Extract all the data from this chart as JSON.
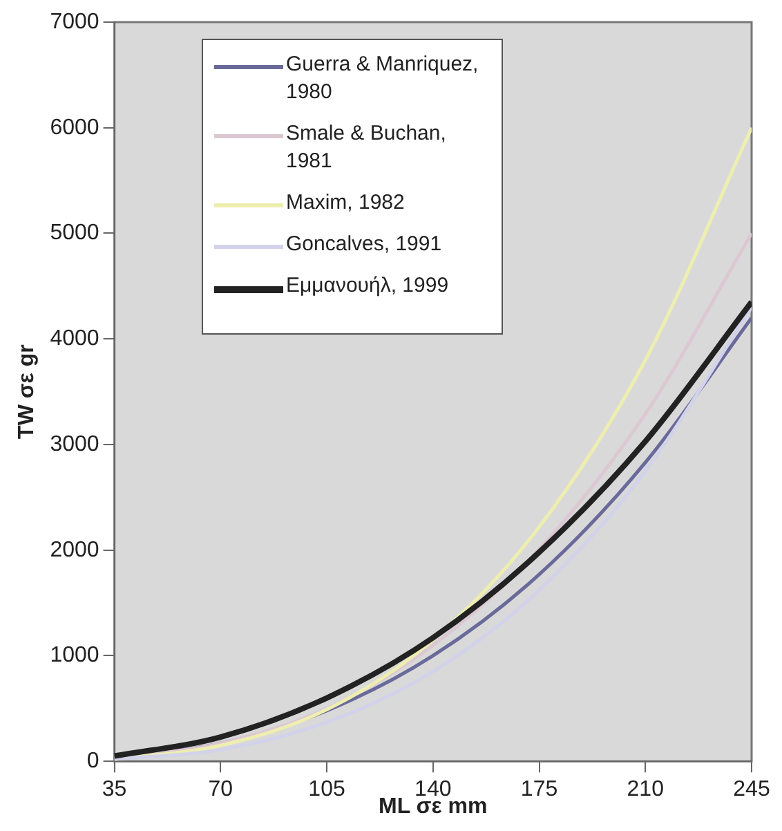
{
  "chart_data": {
    "type": "line",
    "xlabel": "ML σε mm",
    "ylabel": "TW σε gr",
    "x": [
      35,
      70,
      105,
      140,
      175,
      210,
      245
    ],
    "xlim": [
      35,
      245
    ],
    "xticks": [
      35,
      70,
      105,
      140,
      175,
      210,
      245
    ],
    "ylim": [
      0,
      7000
    ],
    "yticks": [
      0,
      1000,
      2000,
      3000,
      4000,
      5000,
      6000,
      7000
    ],
    "grid": false,
    "legend": "top left",
    "marker": "none",
    "series": [
      {
        "name": "Guerra & Manriquez, 1980",
        "color": "#6a6a9a",
        "values": [
          30,
          170,
          480,
          1000,
          1770,
          2830,
          4200
        ]
      },
      {
        "name": "Smale & Buchan, 1981",
        "color": "#dcc8d2",
        "values": [
          30,
          170,
          500,
          1100,
          2010,
          3290,
          5000
        ]
      },
      {
        "name": "Maxim, 1982",
        "color": "#eeeeb0",
        "values": [
          20,
          150,
          490,
          1150,
          2220,
          3800,
          6000
        ]
      },
      {
        "name": "Goncalves, 1991",
        "color": "#d2d2ea",
        "values": [
          20,
          110,
          370,
          850,
          1620,
          2750,
          4300
        ]
      },
      {
        "name": "Εμμανουήλ, 1999",
        "color": "#222222",
        "values": [
          50,
          230,
          600,
          1170,
          1980,
          3030,
          4350
        ]
      }
    ]
  }
}
